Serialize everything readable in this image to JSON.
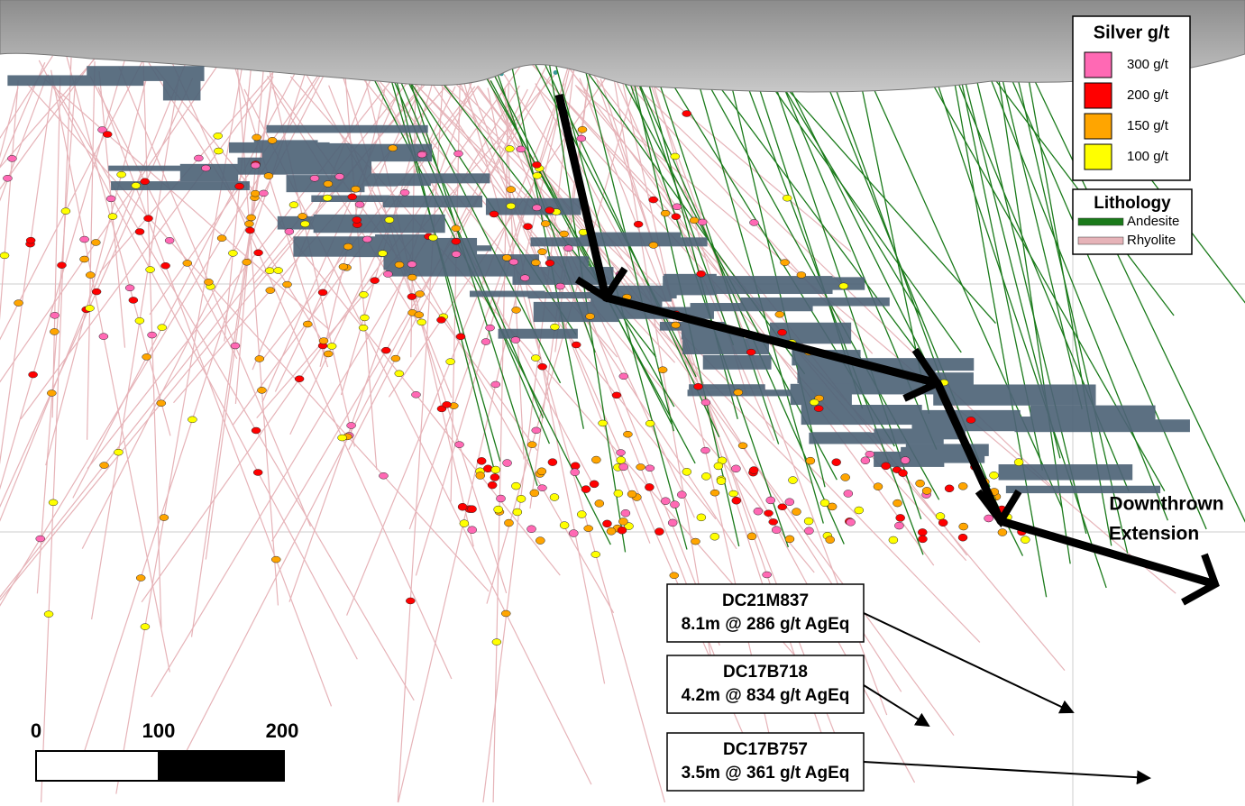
{
  "legend": {
    "grade": {
      "title": "Silver g/t",
      "items": [
        {
          "label": "300 g/t",
          "color": "#ff69b4"
        },
        {
          "label": "200 g/t",
          "color": "#ff0000"
        },
        {
          "label": "150 g/t",
          "color": "#ffa500"
        },
        {
          "label": "100 g/t",
          "color": "#ffff00"
        }
      ]
    },
    "lithology": {
      "title": "Lithology",
      "items": [
        {
          "label": "Andesite",
          "color": "#1a7a1a"
        },
        {
          "label": "Rhyolite",
          "color": "#e6b3b8"
        }
      ]
    }
  },
  "scale_bar": {
    "labels": [
      "0",
      "100",
      "200"
    ]
  },
  "callouts": [
    {
      "hole": "DC21M837",
      "intercept": "8.1m @ 286 g/t AgEq"
    },
    {
      "hole": "DC17B718",
      "intercept": "4.2m @ 834 g/t AgEq"
    },
    {
      "hole": "DC17B757",
      "intercept": "3.5m @ 361 g/t AgEq"
    }
  ],
  "annotation": {
    "lines": [
      "Downthrown",
      "Extension"
    ]
  }
}
